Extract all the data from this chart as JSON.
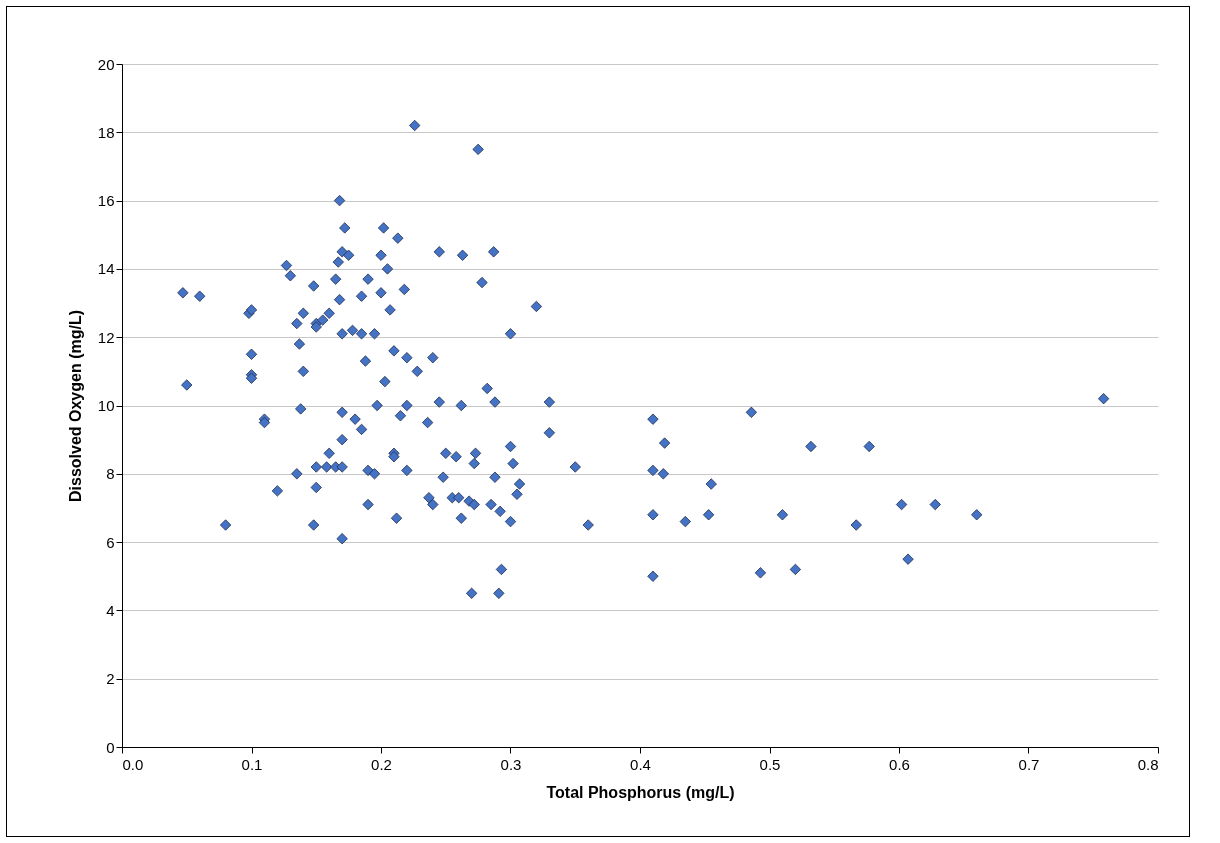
{
  "chart_data": {
    "type": "scatter",
    "xlabel": "Total Phosphorus (mg/L)",
    "ylabel": "Dissolved Oxygen (mg/L)",
    "marker": "diamond",
    "grid": "y",
    "legend": false,
    "xlim": [
      0,
      0.8
    ],
    "xticks": [
      {
        "value": 0,
        "label": "0.0"
      },
      0.1,
      0.2,
      0.3,
      0.4,
      0.5,
      0.6,
      0.7,
      0.8
    ],
    "ylim": [
      0,
      20
    ],
    "yticks": [
      0,
      2,
      4,
      6,
      8,
      10,
      12,
      14,
      16,
      18,
      20
    ],
    "series": [
      {
        "color": "#4472c4",
        "x": [
          0.047,
          0.06,
          0.05,
          0.08,
          0.098,
          0.1,
          0.1,
          0.1,
          0.1,
          0.11,
          0.11,
          0.12,
          0.127,
          0.13,
          0.135,
          0.14,
          0.137,
          0.14,
          0.138,
          0.135,
          0.148,
          0.15,
          0.15,
          0.155,
          0.16,
          0.165,
          0.167,
          0.168,
          0.17,
          0.172,
          0.175,
          0.168,
          0.17,
          0.178,
          0.185,
          0.185,
          0.19,
          0.188,
          0.195,
          0.2,
          0.2,
          0.202,
          0.205,
          0.207,
          0.213,
          0.218,
          0.21,
          0.22,
          0.226,
          0.203,
          0.197,
          0.22,
          0.228,
          0.24,
          0.236,
          0.215,
          0.21,
          0.21,
          0.22,
          0.212,
          0.19,
          0.19,
          0.195,
          0.185,
          0.18,
          0.17,
          0.17,
          0.16,
          0.158,
          0.165,
          0.17,
          0.15,
          0.15,
          0.148,
          0.17,
          0.245,
          0.263,
          0.287,
          0.275,
          0.278,
          0.32,
          0.3,
          0.282,
          0.288,
          0.245,
          0.262,
          0.33,
          0.33,
          0.3,
          0.302,
          0.25,
          0.258,
          0.273,
          0.272,
          0.248,
          0.288,
          0.237,
          0.24,
          0.255,
          0.26,
          0.268,
          0.272,
          0.285,
          0.292,
          0.262,
          0.3,
          0.305,
          0.307,
          0.27,
          0.291,
          0.293,
          0.35,
          0.36,
          0.41,
          0.419,
          0.41,
          0.418,
          0.41,
          0.41,
          0.435,
          0.455,
          0.453,
          0.486,
          0.493,
          0.51,
          0.52,
          0.532,
          0.567,
          0.577,
          0.602,
          0.607,
          0.628,
          0.66,
          0.758
        ],
        "values": [
          13.3,
          13.2,
          10.6,
          6.5,
          12.7,
          12.8,
          11.5,
          10.9,
          10.8,
          9.6,
          9.5,
          7.5,
          14.1,
          13.8,
          12.4,
          12.7,
          11.8,
          11,
          9.9,
          8.0,
          13.5,
          12.4,
          12.3,
          12.5,
          12.7,
          13.7,
          14.2,
          16.0,
          14.5,
          15.2,
          14.4,
          13.1,
          12.1,
          12.2,
          12.1,
          13.2,
          13.7,
          11.3,
          12.1,
          14.4,
          13.3,
          15.2,
          14.0,
          12.8,
          14.9,
          13.4,
          11.6,
          11.4,
          18.2,
          10.7,
          10.0,
          10.0,
          11.0,
          11.4,
          9.5,
          9.7,
          8.6,
          8.5,
          8.1,
          6.7,
          7.1,
          8.1,
          8.0,
          9.3,
          9.6,
          9.8,
          9.0,
          8.6,
          8.2,
          8.2,
          8.2,
          8.2,
          7.6,
          6.5,
          6.1,
          14.5,
          14.4,
          14.5,
          17.5,
          13.6,
          12.9,
          12.1,
          10.5,
          10.1,
          10.1,
          10.0,
          10.1,
          9.2,
          8.8,
          8.3,
          8.6,
          8.5,
          8.6,
          8.3,
          7.9,
          7.9,
          7.3,
          7.1,
          7.3,
          7.3,
          7.2,
          7.1,
          7.1,
          6.9,
          6.7,
          6.6,
          7.4,
          7.7,
          4.5,
          4.5,
          5.2,
          8.2,
          6.5,
          9.6,
          8.9,
          8.1,
          8.0,
          6.8,
          5.0,
          6.6,
          7.7,
          6.8,
          9.8,
          5.1,
          6.8,
          5.2,
          8.8,
          6.5,
          8.8,
          7.1,
          5.5,
          7.1,
          6.8,
          10.2
        ]
      }
    ]
  }
}
